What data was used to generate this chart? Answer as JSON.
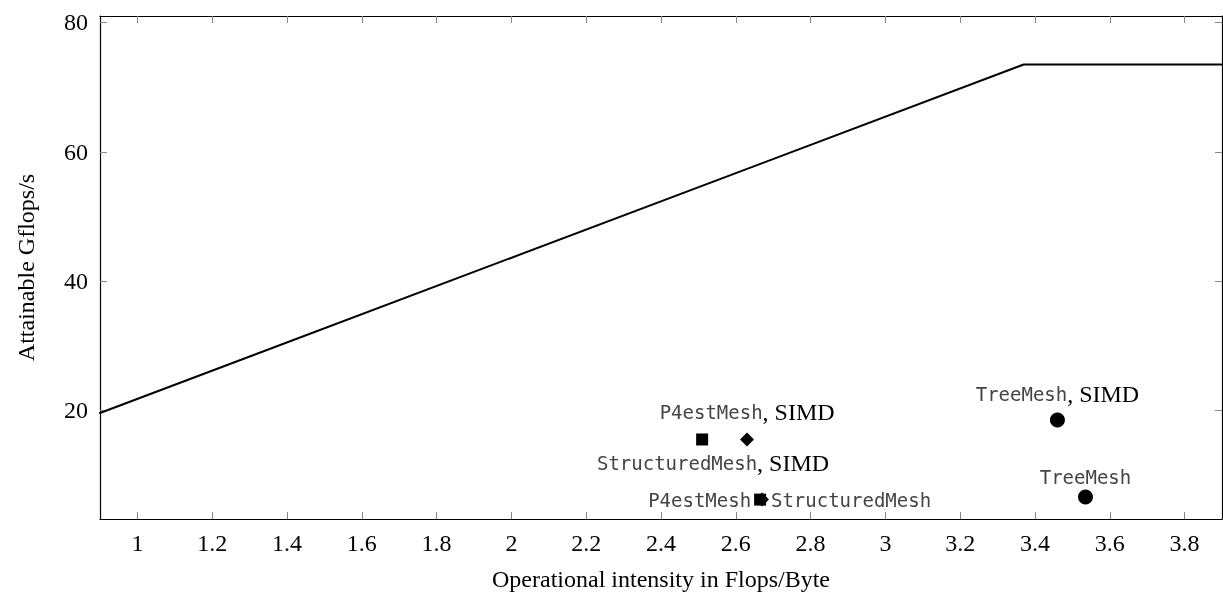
{
  "chart_data": {
    "type": "scatter",
    "xlabel": "Operational intensity in Flops/Byte",
    "ylabel": "Attainable Gflops/s",
    "xlim": [
      0.9,
      3.9
    ],
    "xticks": [
      1,
      1.2,
      1.4,
      1.6,
      1.8,
      2,
      2.2,
      2.4,
      2.6,
      2.8,
      3,
      3.2,
      3.4,
      3.6,
      3.8
    ],
    "ylim": [
      3.2,
      81
    ],
    "yticks": [
      20,
      40,
      60,
      80
    ],
    "grid": false,
    "series": [
      {
        "type": "line",
        "color": "#000000",
        "marker": "none",
        "x": [
          0.9,
          3.37,
          3.9
        ],
        "values": [
          19.6,
          73.5,
          73.5
        ]
      },
      {
        "color": "#000000",
        "marker": "circle",
        "x": [
          3.46,
          3.535
        ],
        "values": [
          18.5,
          6.6
        ]
      },
      {
        "color": "#000000",
        "marker": "square",
        "x": [
          2.51,
          2.665
        ],
        "values": [
          15.5,
          6.2
        ]
      },
      {
        "color": "#000000",
        "marker": "diamond",
        "x": [
          2.63,
          2.67
        ],
        "values": [
          15.5,
          6.2
        ]
      }
    ],
    "annotations": [
      {
        "text": "TreeMesh, SIMD",
        "x": 3.46,
        "y": 18.5
      },
      {
        "text": "TreeMesh",
        "x": 3.535,
        "y": 6.6
      },
      {
        "text": "P4estMesh, SIMD",
        "x": 2.51,
        "y": 15.5
      },
      {
        "text": "StructuredMesh, SIMD",
        "x": 2.63,
        "y": 15.5
      },
      {
        "text": "P4estMesh",
        "x": 2.665,
        "y": 6.2
      },
      {
        "text": "StructuredMesh",
        "x": 2.67,
        "y": 6.2
      }
    ]
  }
}
